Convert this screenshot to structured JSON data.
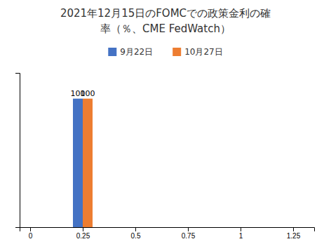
{
  "chart_data": {
    "type": "bar",
    "title": [
      "2021年12月15日のFOMCでの政策金利の確",
      "率（％、CME FedWatch）"
    ],
    "x": [
      0.25
    ],
    "series": [
      {
        "name": "9月22日",
        "color": "#4472C4",
        "values": [
          100
        ]
      },
      {
        "name": "10月27日",
        "color": "#ED7D31",
        "values": [
          100
        ]
      }
    ],
    "xlim": [
      -0.05,
      1.35
    ],
    "xticks": [
      0,
      0.25,
      0.5,
      0.75,
      1,
      1.25
    ],
    "ylim": [
      0,
      120
    ],
    "data_labels": true,
    "tick_labels": "x",
    "grid": false,
    "legend": "top"
  }
}
